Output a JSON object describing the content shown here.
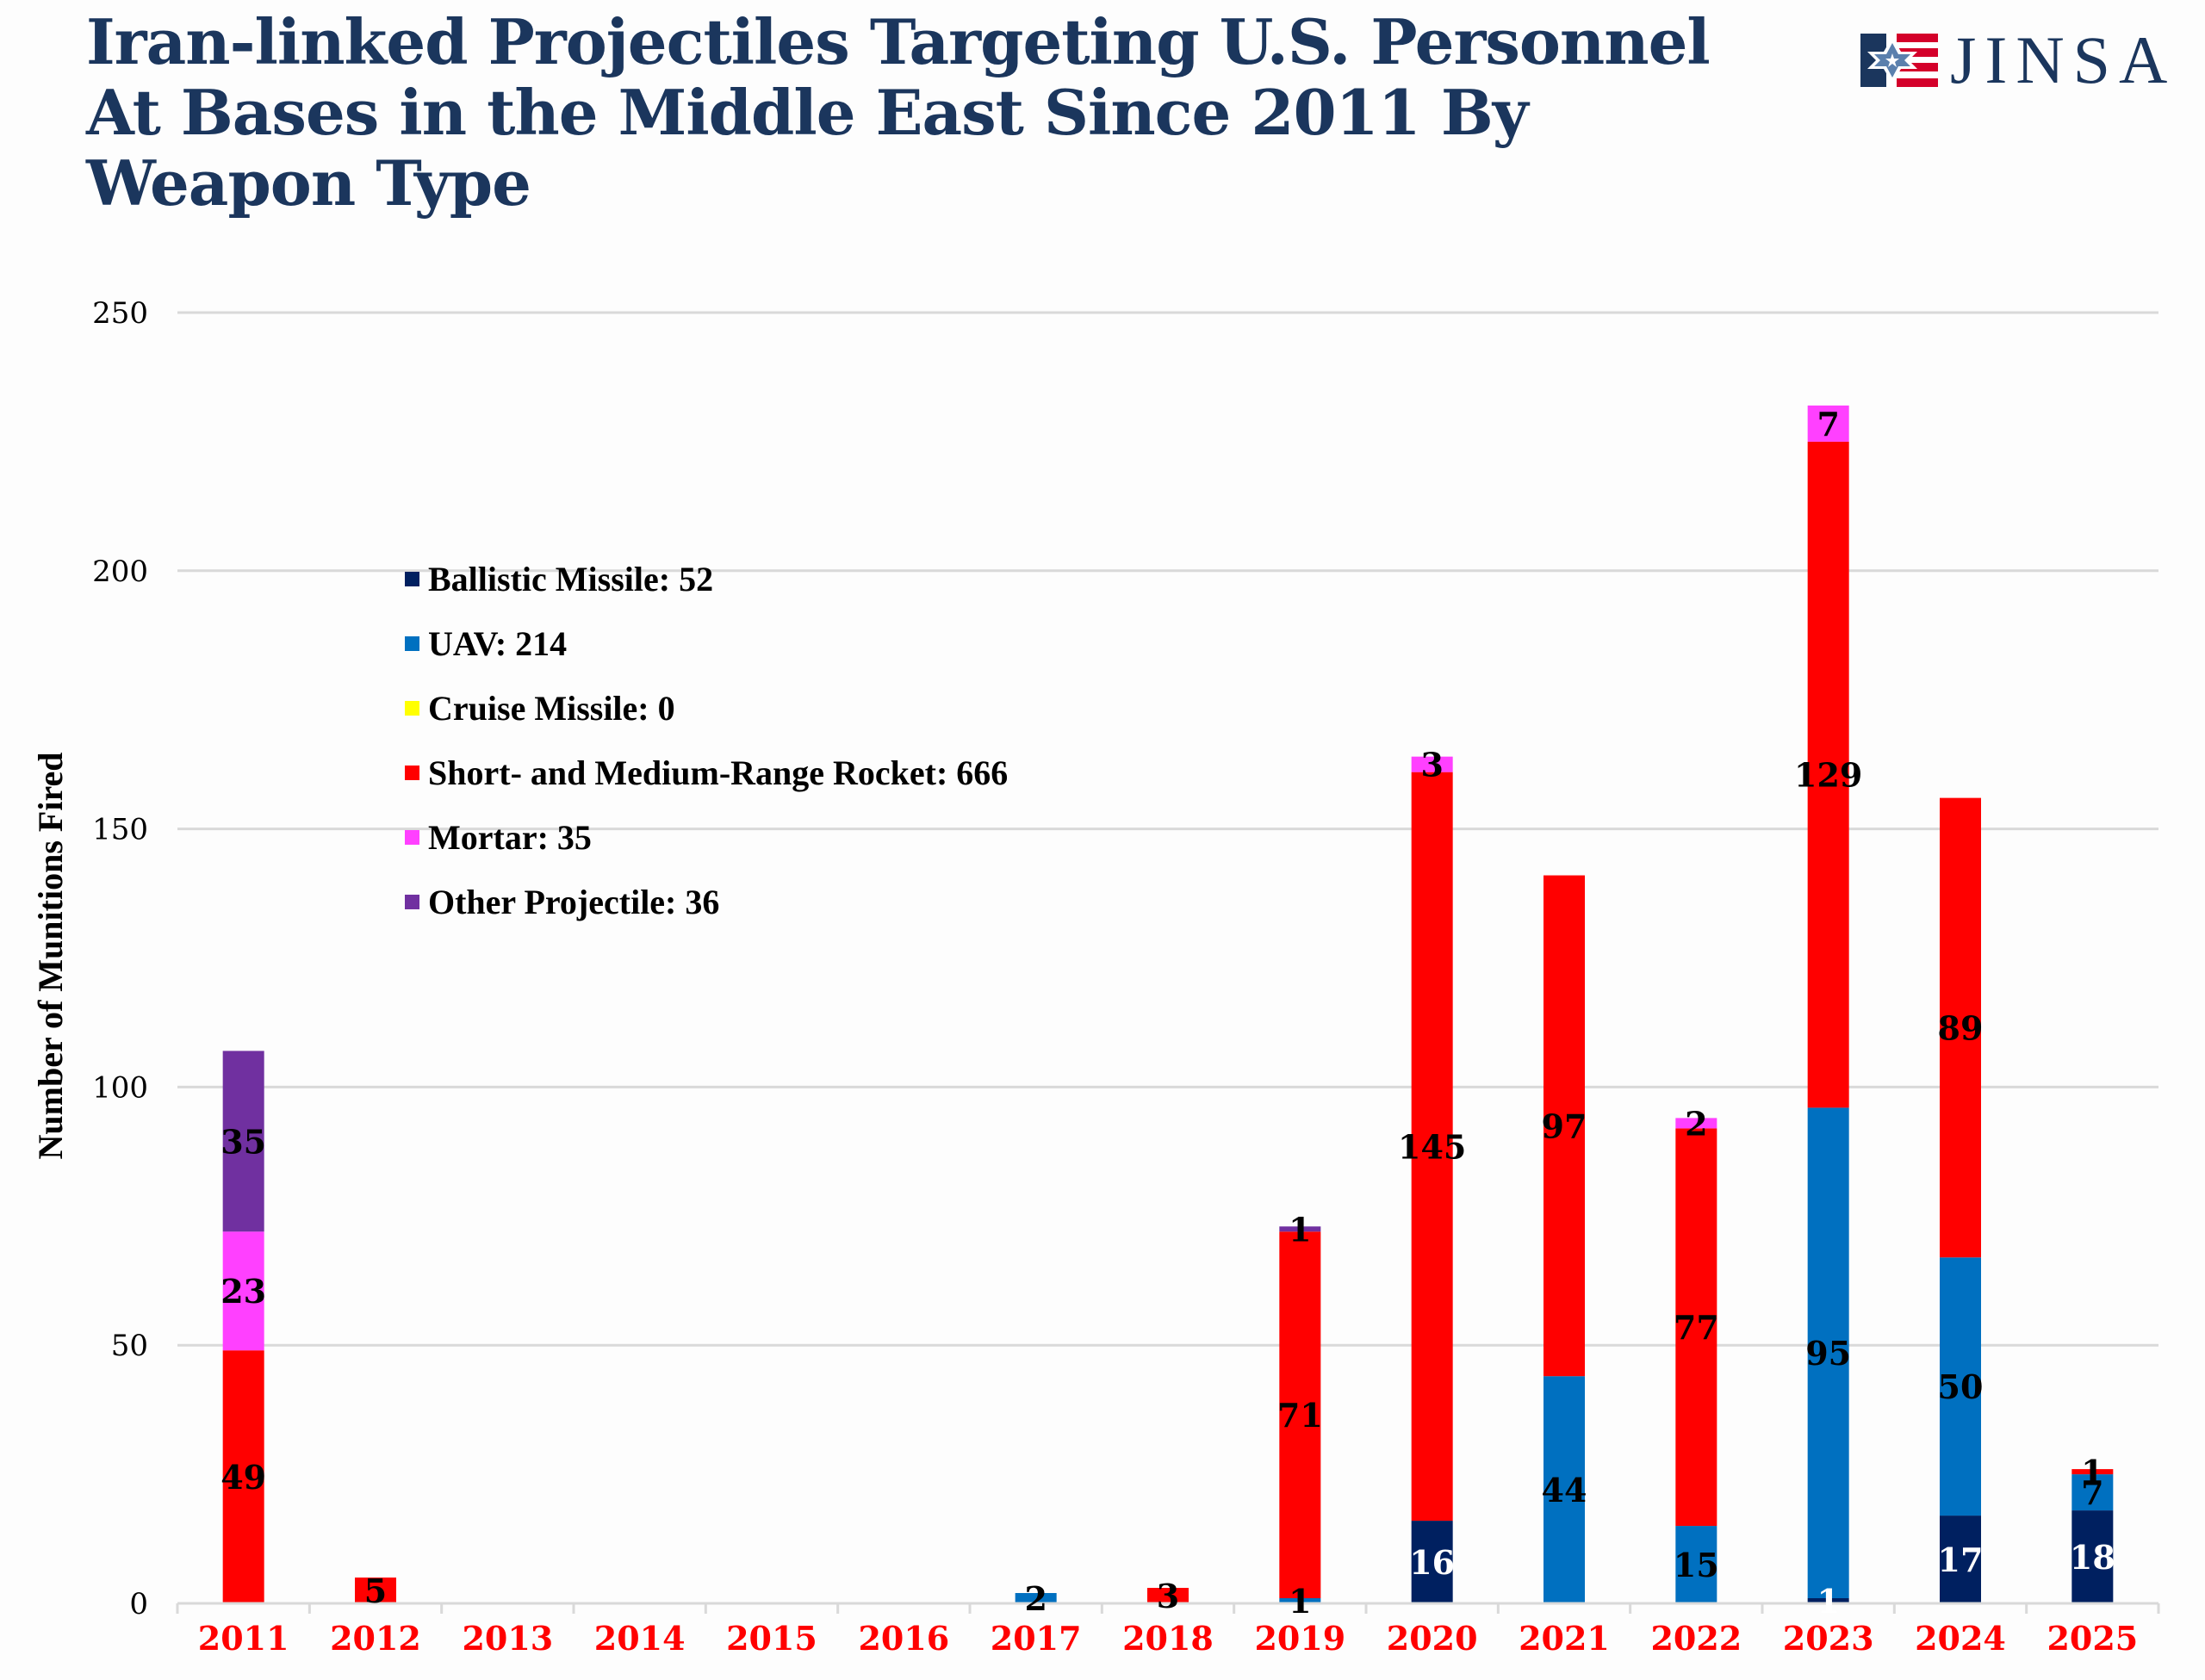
{
  "header": {
    "title": "Iran-linked Projectiles Targeting U.S. Personnel At Bases in the Middle East Since 2011 By Weapon Type",
    "logo_text": "JINSA",
    "logo_icon": "star-of-david-flag-icon",
    "title_color": "#1b365d"
  },
  "chart_data": {
    "type": "bar",
    "stacked": true,
    "title": "Iran-linked Projectiles Targeting U.S. Personnel At Bases in the Middle East Since 2011 By Weapon Type",
    "xlabel": "",
    "ylabel": "Number of Munitions Fired",
    "ylim": [
      0,
      250
    ],
    "yticks": [
      0,
      50,
      100,
      150,
      200,
      250
    ],
    "grid": true,
    "legend_position": "upper-left",
    "categories": [
      "2011",
      "2012",
      "2013",
      "2014",
      "2015",
      "2016",
      "2017",
      "2018",
      "2019",
      "2020",
      "2021",
      "2022",
      "2023",
      "2024",
      "2025"
    ],
    "series": [
      {
        "name": "Ballistic Missile",
        "legend_label": "Ballistic Missile: 52",
        "color": "#002060",
        "label_color": "#ffffff",
        "values": [
          0,
          0,
          0,
          0,
          0,
          0,
          0,
          0,
          0,
          16,
          0,
          0,
          1,
          17,
          18
        ]
      },
      {
        "name": "UAV",
        "legend_label": "UAV: 214",
        "color": "#0070c0",
        "label_color": "#000000",
        "values": [
          0,
          0,
          0,
          0,
          0,
          0,
          2,
          0,
          1,
          0,
          44,
          15,
          95,
          50,
          7
        ]
      },
      {
        "name": "Cruise Missile",
        "legend_label": "Cruise Missile: 0",
        "color": "#ffff00",
        "label_color": "#000000",
        "values": [
          0,
          0,
          0,
          0,
          0,
          0,
          0,
          0,
          0,
          0,
          0,
          0,
          0,
          0,
          0
        ]
      },
      {
        "name": "Short- and Medium-Range Rocket",
        "legend_label": "Short- and Medium-Range Rocket: 666",
        "color": "#ff0000",
        "label_color": "#000000",
        "values": [
          49,
          5,
          0,
          0,
          0,
          0,
          0,
          3,
          71,
          145,
          97,
          77,
          129,
          89,
          1
        ]
      },
      {
        "name": "Mortar",
        "legend_label": "Mortar: 35",
        "color": "#ff40ff",
        "label_color": "#000000",
        "values": [
          23,
          0,
          0,
          0,
          0,
          0,
          0,
          0,
          0,
          3,
          0,
          2,
          7,
          0,
          0
        ]
      },
      {
        "name": "Other Projectile",
        "legend_label": "Other Projectile: 36",
        "color": "#7030a0",
        "label_color": "#000000",
        "values": [
          35,
          0,
          0,
          0,
          0,
          0,
          0,
          0,
          1,
          0,
          0,
          0,
          0,
          0,
          0
        ]
      }
    ],
    "xtick_color": "#ff0000"
  }
}
